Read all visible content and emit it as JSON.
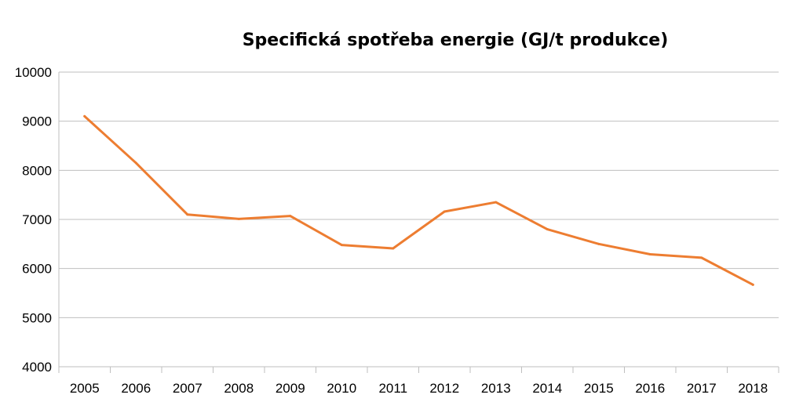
{
  "chart_data": {
    "type": "line",
    "title": "Specifická spotřeba energie (GJ/t produkce)",
    "xlabel": "",
    "ylabel": "",
    "x": [
      "2005",
      "2006",
      "2007",
      "2008",
      "2009",
      "2010",
      "2011",
      "2012",
      "2013",
      "2014",
      "2015",
      "2016",
      "2017",
      "2018"
    ],
    "series": [
      {
        "values": [
          9100,
          8150,
          7100,
          7010,
          7070,
          6480,
          6410,
          7160,
          7350,
          6800,
          6500,
          6290,
          6220,
          5670
        ]
      }
    ],
    "ylim": [
      4000,
      10000
    ],
    "yticks": [
      4000,
      5000,
      6000,
      7000,
      8000,
      9000,
      10000
    ],
    "grid": true,
    "legend": "none",
    "colors": {
      "line": "#ED7D31",
      "grid": "#BFBFBF"
    }
  }
}
